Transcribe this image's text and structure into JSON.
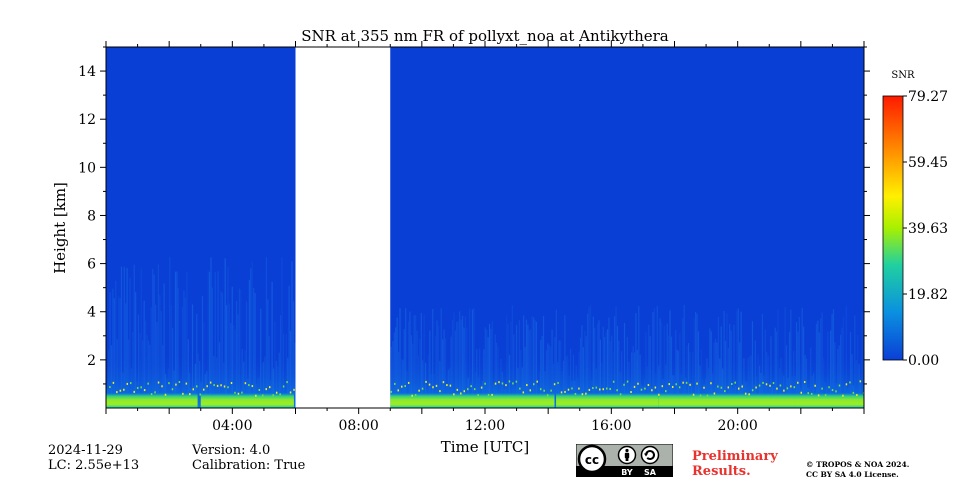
{
  "chart_data": {
    "type": "heatmap",
    "title": "SNR at 355 nm FR of pollyxt_noa at Antikythera",
    "xlabel": "Time [UTC]",
    "ylabel": "Height [km]",
    "x_unit": "hours UTC",
    "xlim": [
      0,
      24
    ],
    "x_ticks": [
      {
        "value": 4,
        "label": "04:00"
      },
      {
        "value": 8,
        "label": "08:00"
      },
      {
        "value": 12,
        "label": "12:00"
      },
      {
        "value": 16,
        "label": "16:00"
      },
      {
        "value": 20,
        "label": "20:00"
      }
    ],
    "ylim": [
      0,
      15
    ],
    "y_ticks": [
      {
        "value": 2,
        "label": "2"
      },
      {
        "value": 4,
        "label": "4"
      },
      {
        "value": 6,
        "label": "6"
      },
      {
        "value": 8,
        "label": "8"
      },
      {
        "value": 10,
        "label": "10"
      },
      {
        "value": 12,
        "label": "12"
      },
      {
        "value": 14,
        "label": "14"
      }
    ],
    "colorbar": {
      "label": "SNR",
      "min": 0.0,
      "max": 79.27,
      "ticks": [
        {
          "value": 0.0,
          "label": "0.00"
        },
        {
          "value": 19.82,
          "label": "19.82"
        },
        {
          "value": 39.63,
          "label": "39.63"
        },
        {
          "value": 59.45,
          "label": "59.45"
        },
        {
          "value": 79.27,
          "label": "79.27"
        }
      ],
      "colormap": "jet"
    },
    "no_data_intervals": [
      [
        6.0,
        9.0
      ]
    ],
    "background_snr": 3,
    "near_surface_layer": {
      "height_range_km": [
        0,
        0.6
      ],
      "snr_range": [
        30,
        45
      ]
    },
    "grid": false,
    "legend": "none"
  },
  "footer": {
    "date": "2024-11-29",
    "lc": "LC: 2.55e+13",
    "version": "Version: 4.0",
    "calibration": "Calibration: True",
    "preliminary_line1": "Preliminary",
    "preliminary_line2": "Results.",
    "copyright_line1": "© TROPOS & NOA 2024.",
    "copyright_line2": "CC BY SA 4.0 License.",
    "license_badge": {
      "cc": "cc",
      "by": "BY",
      "sa": "SA"
    }
  },
  "colors": {
    "background_field": "#0a3fd6",
    "no_data": "#ffffff",
    "preliminary_text": "#e8322e"
  },
  "icons": [
    "cc-logo-icon",
    "by-person-icon",
    "sa-recycle-icon"
  ]
}
